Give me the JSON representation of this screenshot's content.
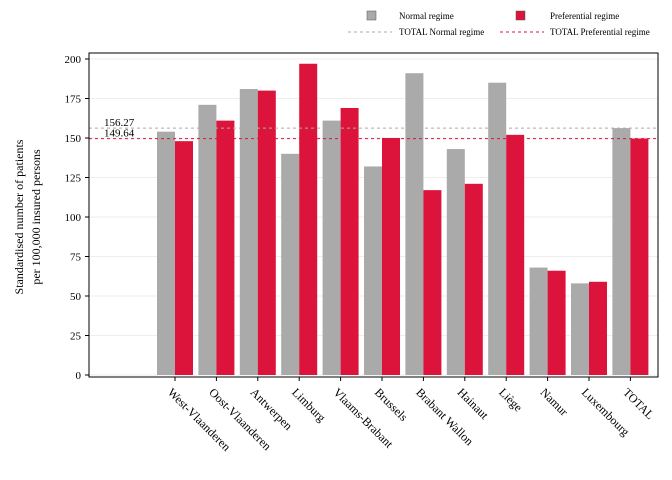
{
  "chart_data": {
    "type": "bar",
    "ylabel_lines": [
      "Standardised number of patients",
      "per 100,000 insured persons"
    ],
    "ylim": [
      0,
      200
    ],
    "yticks": [
      0,
      25,
      50,
      75,
      100,
      125,
      150,
      175,
      200
    ],
    "grid": true,
    "legend_position": "top",
    "categories": [
      "West-Vlaanderen",
      "Oost-Vlaanderen",
      "Antwerpen",
      "Limburg",
      "Vlaams-Brabant",
      "Brussels",
      "Brabant Wallon",
      "Hainaut",
      "Liège",
      "Namur",
      "Luxembourg",
      "TOTAL"
    ],
    "series": [
      {
        "name": "Normal regime",
        "color": "#aaaaaa",
        "values": [
          154,
          171,
          181,
          140,
          161,
          132,
          191,
          143,
          185,
          68,
          58,
          156.27
        ]
      },
      {
        "name": "Preferential regime",
        "color": "#dc143c",
        "values": [
          148,
          161,
          180,
          197,
          169,
          150,
          117,
          121,
          152,
          66,
          59,
          149.64
        ]
      }
    ],
    "reference_lines": [
      {
        "name": "TOTAL Normal regime",
        "value": 156.27,
        "label": "156.27",
        "color": "#aaaaaa"
      },
      {
        "name": "TOTAL Preferential regime",
        "value": 149.64,
        "label": "149.64",
        "color": "#dc143c"
      }
    ]
  }
}
